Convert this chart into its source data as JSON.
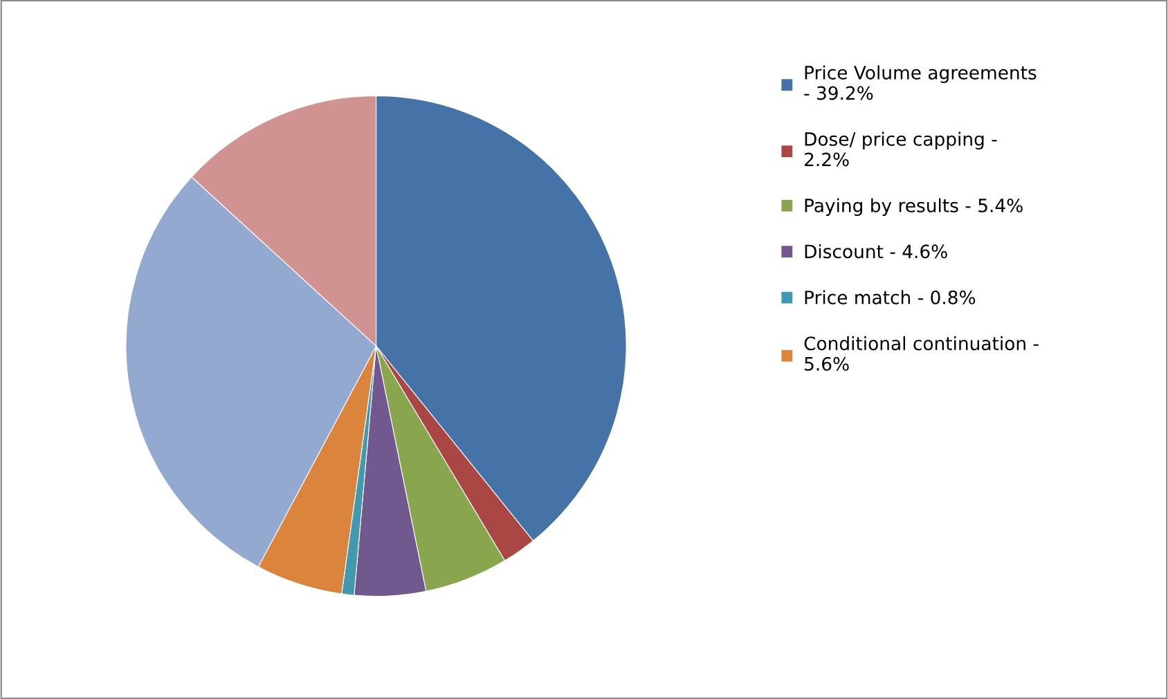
{
  "chart_data": {
    "type": "pie",
    "categories": [
      "Price Volume agreements\n- 39.2%",
      "Dose/ price capping -\n2.2%",
      "Paying by results - 5.4%",
      "Discount - 4.6%",
      "Price match - 0.8%",
      "Conditional continuation -\n5.6%",
      null,
      null
    ],
    "values": [
      39.2,
      2.2,
      5.4,
      4.6,
      0.8,
      5.6,
      29.0,
      13.2
    ],
    "colors": [
      "#4572a7",
      "#aa4643",
      "#89a54e",
      "#71588f",
      "#4198af",
      "#db843d",
      "#93a9cf",
      "#d19392"
    ],
    "legend": "right"
  }
}
